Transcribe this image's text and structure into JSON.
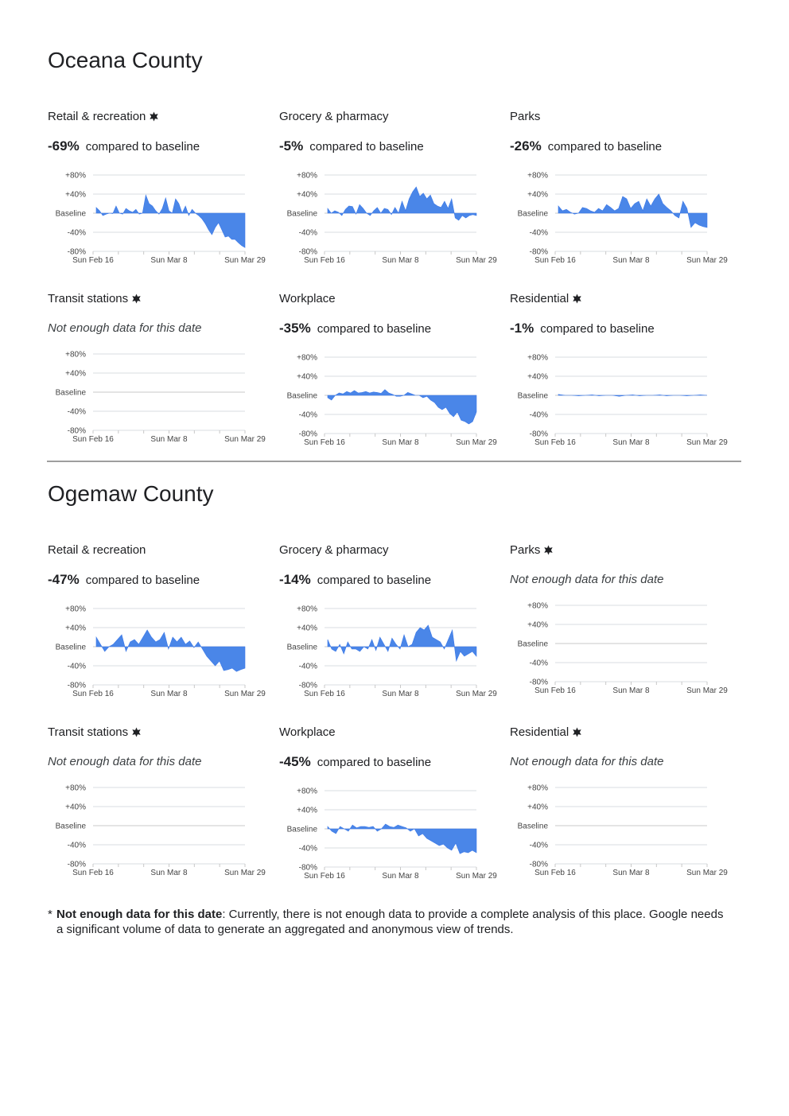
{
  "counties": [
    {
      "name": "Oceana County",
      "panels": [
        {
          "title": "Retail & recreation",
          "star": true,
          "percent": "-69%",
          "compare": "compared to baseline",
          "series": [
            12,
            5,
            -5,
            -2,
            0,
            -1,
            15,
            0,
            -2,
            10,
            5,
            2,
            8,
            -2,
            0,
            38,
            20,
            15,
            5,
            -2,
            10,
            32,
            5,
            0,
            30,
            20,
            0,
            15,
            -5,
            8,
            0,
            -5,
            -12,
            -22,
            -35,
            -45,
            -30,
            -20,
            -35,
            -50,
            -48,
            -55,
            -55,
            -62,
            -68,
            -72
          ]
        },
        {
          "title": "Grocery & pharmacy",
          "star": false,
          "percent": "-5%",
          "compare": "compared to baseline",
          "series": [
            10,
            0,
            5,
            2,
            -5,
            8,
            15,
            14,
            -2,
            18,
            10,
            0,
            -5,
            5,
            12,
            0,
            10,
            8,
            -3,
            12,
            0,
            25,
            5,
            30,
            45,
            55,
            35,
            42,
            30,
            38,
            20,
            15,
            12,
            25,
            10,
            30,
            -10,
            -15,
            -5,
            -10,
            -5,
            -3,
            -5
          ]
        },
        {
          "title": "Parks",
          "star": false,
          "percent": "-26%",
          "compare": "compared to baseline",
          "series": [
            15,
            5,
            8,
            2,
            -2,
            0,
            12,
            10,
            5,
            2,
            10,
            5,
            18,
            12,
            5,
            10,
            35,
            30,
            10,
            20,
            25,
            5,
            30,
            15,
            30,
            40,
            20,
            12,
            5,
            -5,
            -10,
            25,
            10,
            -30,
            -20,
            -25,
            -28,
            -30
          ]
        },
        {
          "title": "Transit stations",
          "star": true,
          "nodata": "Not enough data for this date",
          "series": []
        },
        {
          "title": "Workplace",
          "star": false,
          "percent": "-35%",
          "compare": "compared to baseline",
          "series": [
            -5,
            -10,
            0,
            5,
            3,
            8,
            5,
            10,
            5,
            6,
            8,
            5,
            7,
            6,
            4,
            12,
            5,
            2,
            -2,
            -2,
            0,
            6,
            3,
            0,
            0,
            -5,
            -2,
            -10,
            -15,
            -25,
            -30,
            -25,
            -38,
            -45,
            -35,
            -52,
            -55,
            -60,
            -55,
            -35
          ]
        },
        {
          "title": "Residential",
          "star": true,
          "percent": "-1%",
          "compare": "compared to baseline",
          "series": [
            2,
            0,
            0,
            -1,
            0,
            1,
            -1,
            0,
            0,
            -2,
            0,
            1,
            -1,
            0,
            0,
            1,
            -1,
            0,
            0,
            -1,
            0,
            1,
            0
          ]
        }
      ]
    },
    {
      "name": "Ogemaw County",
      "panels": [
        {
          "title": "Retail & recreation",
          "star": false,
          "percent": "-47%",
          "compare": "compared to baseline",
          "series": [
            20,
            5,
            -10,
            0,
            5,
            15,
            25,
            -10,
            10,
            15,
            5,
            20,
            35,
            20,
            10,
            15,
            30,
            -5,
            20,
            10,
            20,
            5,
            12,
            -2,
            10,
            -5,
            -20,
            -30,
            -40,
            -30,
            -50,
            -48,
            -45,
            -52,
            -48,
            -45
          ]
        },
        {
          "title": "Grocery & pharmacy",
          "star": false,
          "percent": "-14%",
          "compare": "compared to baseline",
          "series": [
            15,
            -5,
            -10,
            5,
            -15,
            10,
            -5,
            -5,
            -10,
            0,
            -5,
            15,
            -8,
            20,
            5,
            -10,
            18,
            5,
            -5,
            25,
            0,
            5,
            30,
            40,
            35,
            45,
            20,
            15,
            10,
            -5,
            15,
            35,
            -30,
            -10,
            -20,
            -15,
            -10,
            -20
          ]
        },
        {
          "title": "Parks",
          "star": true,
          "nodata": "Not enough data for this date",
          "series": []
        },
        {
          "title": "Transit stations",
          "star": true,
          "nodata": "Not enough data for this date",
          "series": []
        },
        {
          "title": "Workplace",
          "star": false,
          "percent": "-45%",
          "compare": "compared to baseline",
          "series": [
            5,
            -5,
            -10,
            5,
            0,
            -5,
            8,
            2,
            5,
            5,
            3,
            5,
            -5,
            0,
            10,
            5,
            3,
            8,
            5,
            2,
            -5,
            0,
            -15,
            -10,
            -20,
            -25,
            -30,
            -35,
            -32,
            -40,
            -45,
            -30,
            -52,
            -48,
            -50,
            -45,
            -50
          ]
        },
        {
          "title": "Residential",
          "star": true,
          "nodata": "Not enough data for this date",
          "series": []
        }
      ]
    }
  ],
  "axis": {
    "y_labels": [
      "+80%",
      "+40%",
      "Baseline",
      "-40%",
      "-80%"
    ],
    "x_labels": [
      "Sun Feb 16",
      "Sun Mar 8",
      "Sun Mar 29"
    ],
    "ylim": [
      -80,
      80
    ]
  },
  "footnote": {
    "asterisk": "*",
    "key": "Not enough data for this date",
    "text": ": Currently, there is not enough data to provide a complete analysis of this place. Google needs a significant volume of data to generate an aggregated and anonymous view of trends."
  },
  "colors": {
    "area": "#4a86e8"
  }
}
